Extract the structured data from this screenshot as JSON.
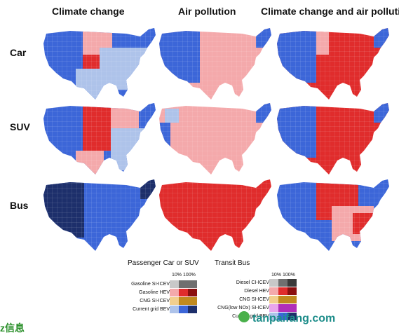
{
  "columns": [
    "Climate change",
    "Air pollution",
    "Climate change and air pollution"
  ],
  "rows": [
    "Car",
    "SUV",
    "Bus"
  ],
  "colors": {
    "gas_light": "#c8c8c8",
    "gas_dark": "#6f6f6f",
    "hev_light": "#f4a9ab",
    "hev_dark": "#e02c2c",
    "cng_light": "#f2cf8e",
    "cng_dark": "#c08a1f",
    "bev_light": "#aec3ea",
    "bev_dark": "#3c66d8",
    "bev_darker": "#1d2f6b",
    "diesel_dark": "#3a3a3a",
    "bus_hev_dark": "#8b0f0f",
    "cng_lownox_light": "#e9a6ec",
    "cng_lownox_dark": "#b02fb8"
  },
  "legend_passenger": {
    "title": "Passenger Car or SUV",
    "pct": [
      "10%",
      "100%"
    ],
    "items": [
      "Gasoline SI-ICEV",
      "Gasoline HEV",
      "CNG SI-ICEV",
      "Current grid BEV"
    ]
  },
  "legend_bus": {
    "title": "Transit Bus",
    "pct": [
      "10%",
      "100%"
    ],
    "items": [
      "Diesel CI-ICEV",
      "Diesel HEV",
      "CNG SI-ICEV",
      "CNG(low NOx) SI-ICEV",
      "Current grid BEV"
    ]
  },
  "watermark": "tanpaifang.com",
  "corner_text": "z信息"
}
